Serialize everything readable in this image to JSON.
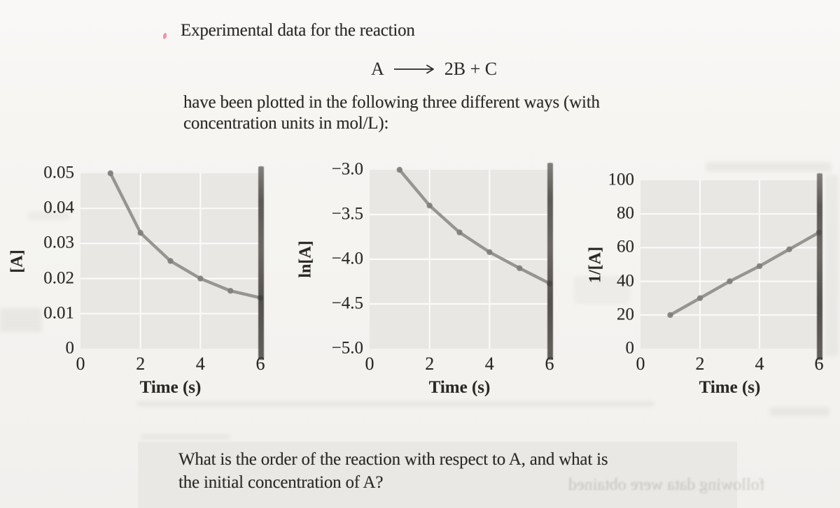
{
  "page": {
    "intro": "Experimental data for the reaction",
    "equation_lhs": "A",
    "equation_rhs": "2B + C",
    "body_line1": "have been plotted in the following three different ways (with",
    "body_line2": "concentration units in mol/L):",
    "question_line1": "What is the order of the reaction with respect to A, and what is",
    "question_line2": "the initial concentration of A?",
    "bleed_through_text": "following data were obtained"
  },
  "colors": {
    "page_bg": "#f5f4f1",
    "plot_bg": "#e9e7e4",
    "grid": "#fbfaf8",
    "line": "#8f8e8b",
    "marker": "#7f7e7b",
    "text": "#2b2926",
    "stripe": "#43403c",
    "red_mark": "#e4808f",
    "question_band_bg": "#eae8e5"
  },
  "chart_data": [
    {
      "type": "line",
      "title": "",
      "ylabel": "[A]",
      "xlabel": "Time (s)",
      "x": [
        1,
        2,
        3,
        4,
        5,
        6
      ],
      "y": [
        0.05,
        0.033,
        0.025,
        0.02,
        0.0165,
        0.0145
      ],
      "xlim": [
        0,
        6
      ],
      "ylim": [
        0,
        0.05
      ],
      "xticks": {
        "values": [
          0,
          2,
          4,
          6
        ],
        "labels": [
          "0",
          "2",
          "4",
          "6"
        ]
      },
      "yticks": {
        "values": [
          0.05,
          0.04,
          0.03,
          0.02,
          0.01,
          0
        ],
        "labels": [
          "0.05",
          "0.04",
          "0.03",
          "0.02",
          "0.01",
          "0"
        ]
      },
      "grid": true,
      "legend": false
    },
    {
      "type": "line",
      "title": "",
      "ylabel": "ln[A]",
      "xlabel": "Time (s)",
      "x": [
        1,
        2,
        3,
        4,
        5,
        6
      ],
      "y": [
        -3.0,
        -3.4,
        -3.7,
        -3.92,
        -4.1,
        -4.27
      ],
      "xlim": [
        0,
        6
      ],
      "ylim": [
        -5.0,
        -3.0
      ],
      "xticks": {
        "values": [
          0,
          2,
          4,
          6
        ],
        "labels": [
          "0",
          "2",
          "4",
          "6"
        ]
      },
      "yticks": {
        "values": [
          -3.0,
          -3.5,
          -4.0,
          -4.5,
          -5.0
        ],
        "labels": [
          "−3.0",
          "−3.5",
          "−4.0",
          "−4.5",
          "−5.0"
        ]
      },
      "grid": true,
      "legend": false
    },
    {
      "type": "line",
      "title": "",
      "ylabel": "1/[A]",
      "xlabel": "Time (s)",
      "x": [
        1,
        2,
        3,
        4,
        5,
        6
      ],
      "y": [
        20,
        30,
        40,
        49,
        59,
        69
      ],
      "xlim": [
        0,
        6
      ],
      "ylim": [
        0,
        100
      ],
      "xticks": {
        "values": [
          0,
          2,
          4,
          6
        ],
        "labels": [
          "0",
          "2",
          "4",
          "6"
        ]
      },
      "yticks": {
        "values": [
          100,
          80,
          60,
          40,
          20,
          0
        ],
        "labels": [
          "100",
          "80",
          "60",
          "40",
          "20",
          "0"
        ]
      },
      "grid": true,
      "legend": false
    }
  ]
}
